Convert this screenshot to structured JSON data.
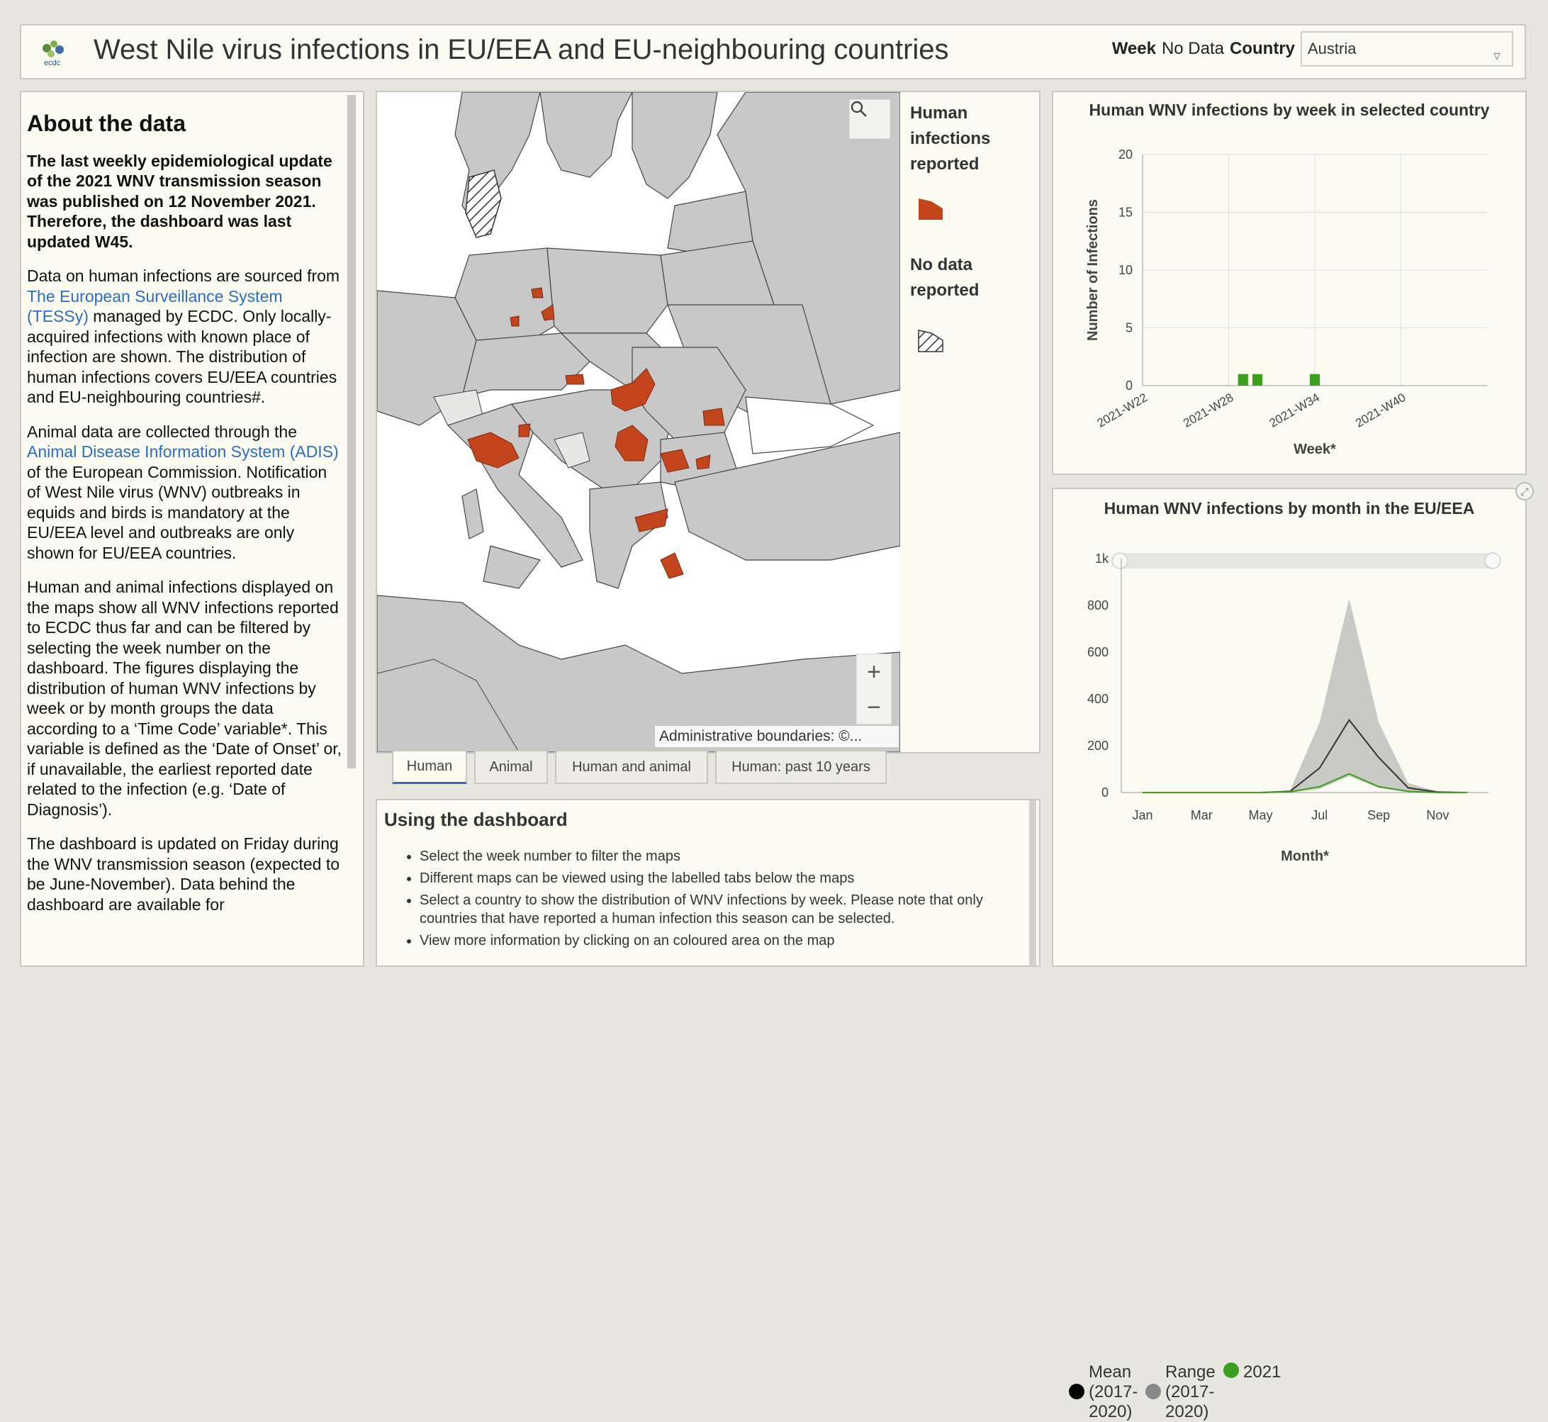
{
  "header": {
    "title": "West Nile virus infections in EU/EEA and EU-neighbouring countries",
    "week_label": "Week",
    "week_value": "No Data",
    "country_label": "Country",
    "country_value": "Austria"
  },
  "about": {
    "heading": "About the data",
    "lead": "The last weekly epidemiological update of the 2021 WNV transmission season was published on 12 November 2021. Therefore, the dashboard was last updated W45.",
    "p1_a": "Data on human infections are sourced from ",
    "p1_link": "The European Surveillance System (TESSy)",
    "p1_b": " managed by ECDC. Only locally-acquired infections with known place of infection are shown. The distribution of human infections covers EU/EEA countries and EU-neighbouring countries#.",
    "p2_a": "Animal data are collected through the ",
    "p2_link": "Animal Disease Information System (ADIS)",
    "p2_b": " of the European Commission. Notification of West Nile virus (WNV) outbreaks in equids and birds is mandatory at the EU/EEA level and outbreaks are only shown for EU/EEA countries.",
    "p3": "Human and animal infections displayed on the maps show all WNV infections reported to ECDC thus far and can be filtered by selecting the week number on the dashboard. The figures displaying the distribution of human WNV infections by week or by month groups the data according to a ‘Time Code’ variable*. This variable is defined as the ‘Date of Onset’ or, if unavailable, the earliest reported date related to the infection (e.g. ‘Date of Diagnosis’).",
    "p4": "The dashboard is updated on Friday during the WNV transmission season (expected to be June-November). Data behind the dashboard are available for"
  },
  "map": {
    "legend_human": "Human infections reported",
    "legend_nodata": "No data reported",
    "attribution": "Administrative boundaries: ©...",
    "zoom_in": "+",
    "zoom_out": "−",
    "colors": {
      "infection": "#c4441c",
      "country": "#c8c8c8",
      "sea": "#ffffff"
    }
  },
  "tabs": [
    "Human",
    "Animal",
    "Human and animal",
    "Human: past 10 years"
  ],
  "using": {
    "heading": "Using the dashboard",
    "items": [
      "Select the week number to filter the maps",
      "Different maps can be viewed using the labelled tabs below the maps",
      "Select a country to show the distribution of WNV infections by week. Please note that only countries that have reported a human infection this season can be selected.",
      "View more information by clicking on an coloured area on the map"
    ]
  },
  "chart_data": [
    {
      "type": "bar",
      "title": "Human WNV infections by week in selected country",
      "xlabel": "Week*",
      "ylabel": "Number of Infections",
      "ylim": [
        0,
        20
      ],
      "yticks": [
        0,
        5,
        10,
        15,
        20
      ],
      "xticks": [
        "2021-W22",
        "2021-W28",
        "2021-W34",
        "2021-W40"
      ],
      "x_range_weeks": [
        22,
        46
      ],
      "bars": [
        {
          "week": 29,
          "value": 1
        },
        {
          "week": 30,
          "value": 1
        },
        {
          "week": 34,
          "value": 1
        }
      ],
      "color": "#3aa01e",
      "grid": true
    },
    {
      "type": "area",
      "title": "Human WNV infections by month in the EU/EEA",
      "xlabel": "Month*",
      "ylim": [
        0,
        1000
      ],
      "ytick_labels": [
        "0",
        "200",
        "400",
        "600",
        "800",
        "1k"
      ],
      "yticks": [
        0,
        200,
        400,
        600,
        800,
        1000
      ],
      "xtick_labels": [
        "Jan",
        "Mar",
        "May",
        "Jul",
        "Sep",
        "Nov"
      ],
      "months": [
        "Jan",
        "Feb",
        "Mar",
        "Apr",
        "May",
        "Jun",
        "Jul",
        "Aug",
        "Sep",
        "Oct",
        "Nov",
        "Dec"
      ],
      "series": [
        {
          "name": "Mean (2017-2020)",
          "color": "#333333",
          "values": [
            0,
            0,
            0,
            0,
            0,
            5,
            105,
            310,
            150,
            20,
            2,
            0
          ]
        },
        {
          "name": "Range (2017-2020)",
          "color": "#888888",
          "lower": [
            0,
            0,
            0,
            0,
            0,
            0,
            15,
            70,
            20,
            2,
            0,
            0
          ],
          "upper": [
            0,
            0,
            0,
            0,
            0,
            10,
            300,
            830,
            300,
            40,
            5,
            0
          ]
        },
        {
          "name": "2021",
          "color": "#3aa01e",
          "values": [
            0,
            0,
            0,
            0,
            0,
            3,
            25,
            80,
            25,
            5,
            0,
            0
          ]
        }
      ]
    }
  ]
}
